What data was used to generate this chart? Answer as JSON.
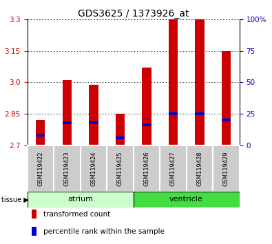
{
  "title": "GDS3625 / 1373926_at",
  "samples": [
    "GSM119422",
    "GSM119423",
    "GSM119424",
    "GSM119425",
    "GSM119426",
    "GSM119427",
    "GSM119428",
    "GSM119429"
  ],
  "transformed_count": [
    2.82,
    3.01,
    2.99,
    2.85,
    3.07,
    3.3,
    3.3,
    3.15
  ],
  "blue_marker_value": [
    2.74,
    2.8,
    2.8,
    2.73,
    2.79,
    2.845,
    2.845,
    2.815
  ],
  "baseline": 2.7,
  "ylim_left": [
    2.7,
    3.3
  ],
  "yticks_left": [
    2.7,
    2.85,
    3.0,
    3.15,
    3.3
  ],
  "yticks_right": [
    0,
    25,
    50,
    75,
    100
  ],
  "right_ylim": [
    0,
    100
  ],
  "tissue_groups": [
    {
      "label": "atrium",
      "start": 0,
      "end": 3,
      "color": "#ccffcc"
    },
    {
      "label": "ventricle",
      "start": 4,
      "end": 7,
      "color": "#44dd44"
    }
  ],
  "bar_color": "#cc0000",
  "blue_color": "#0000cc",
  "sample_bg_color": "#cccccc",
  "tick_label_color_left": "#cc0000",
  "tick_label_color_right": "#0000cc",
  "bar_width": 0.35,
  "legend_items": [
    {
      "label": "transformed count",
      "color": "#cc0000"
    },
    {
      "label": "percentile rank within the sample",
      "color": "#0000cc"
    }
  ]
}
